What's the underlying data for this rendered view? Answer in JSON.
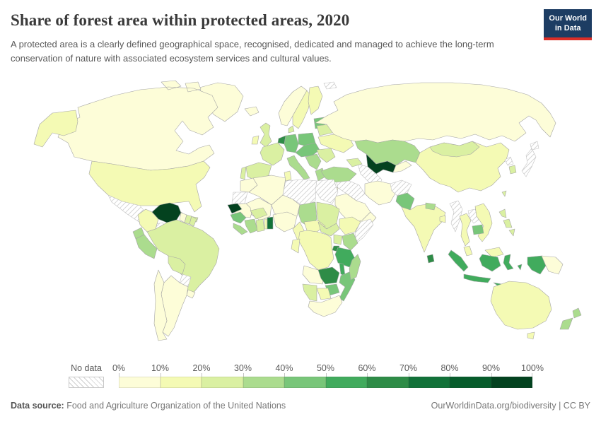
{
  "header": {
    "title": "Share of forest area within protected areas, 2020",
    "subtitle": "A protected area is a clearly defined geographical space, recognised, dedicated and managed to achieve the long-term conservation of nature with associated ecosystem services and cultural values."
  },
  "logo": {
    "line1": "Our World",
    "line2": "in Data",
    "bg_color": "#1d3d63",
    "accent_color": "#dc2e27"
  },
  "legend": {
    "no_data_label": "No data",
    "tick_labels": [
      "0%",
      "10%",
      "20%",
      "30%",
      "40%",
      "50%",
      "60%",
      "70%",
      "80%",
      "90%",
      "100%"
    ],
    "bin_labels": [
      "0-10%",
      "10-20%",
      "20-30%",
      "30-40%",
      "40-50%",
      "50-60%",
      "60-70%",
      "70-80%",
      "80-90%",
      "90-100%"
    ],
    "bin_colors": [
      "#fdfdd8",
      "#f4fab4",
      "#daf0a2",
      "#abdc8e",
      "#78c679",
      "#41ab5d",
      "#2e8c47",
      "#127239",
      "#065c2b",
      "#03421f"
    ]
  },
  "footer": {
    "source_label": "Data source:",
    "source_text": " Food and Agriculture Organization of the United Nations",
    "attribution": "OurWorldinData.org/biodiversity | CC BY"
  },
  "chart_data": {
    "type": "choropleth_map",
    "title": "Share of forest area within protected areas, 2020",
    "unit": "%",
    "bin_edges": [
      0,
      10,
      20,
      30,
      40,
      50,
      60,
      70,
      80,
      90,
      100
    ],
    "legend_position": "bottom",
    "no_data_style": "gray diagonal hatching",
    "regions": [
      {
        "id": "greenland",
        "name": "Greenland",
        "bin": 0
      },
      {
        "id": "canada",
        "name": "Canada",
        "bin": 0
      },
      {
        "id": "usa",
        "name": "United States",
        "bin": 1
      },
      {
        "id": "mexico",
        "name": "Mexico",
        "bin": "no-data"
      },
      {
        "id": "guatemala",
        "name": "Guatemala",
        "bin": 5
      },
      {
        "id": "honduras",
        "name": "Honduras",
        "bin": 2
      },
      {
        "id": "nicaragua",
        "name": "Nicaragua",
        "bin": 2
      },
      {
        "id": "costa_rica",
        "name": "Costa Rica",
        "bin": 4
      },
      {
        "id": "panama",
        "name": "Panama",
        "bin": 4
      },
      {
        "id": "cuba",
        "name": "Cuba",
        "bin": 2
      },
      {
        "id": "hispaniola",
        "name": "Dominican Republic / Haiti",
        "bin": 2
      },
      {
        "id": "venezuela",
        "name": "Venezuela",
        "bin": 9
      },
      {
        "id": "colombia",
        "name": "Colombia",
        "bin": 1
      },
      {
        "id": "guyana",
        "name": "Guyana",
        "bin": 0
      },
      {
        "id": "suriname",
        "name": "Suriname",
        "bin": 2
      },
      {
        "id": "french_guiana",
        "name": "French Guiana",
        "bin": 2
      },
      {
        "id": "ecuador",
        "name": "Ecuador",
        "bin": 3
      },
      {
        "id": "peru",
        "name": "Peru",
        "bin": 3
      },
      {
        "id": "brazil",
        "name": "Brazil",
        "bin": 2
      },
      {
        "id": "bolivia",
        "name": "Bolivia",
        "bin": 2
      },
      {
        "id": "paraguay",
        "name": "Paraguay",
        "bin": "no-data"
      },
      {
        "id": "uruguay",
        "name": "Uruguay",
        "bin": 0
      },
      {
        "id": "argentina",
        "name": "Argentina",
        "bin": 0
      },
      {
        "id": "chile",
        "name": "Chile",
        "bin": 0
      },
      {
        "id": "iceland",
        "name": "Iceland",
        "bin": 0
      },
      {
        "id": "uk",
        "name": "United Kingdom",
        "bin": 2
      },
      {
        "id": "ireland",
        "name": "Ireland",
        "bin": 1
      },
      {
        "id": "norway",
        "name": "Norway",
        "bin": 0
      },
      {
        "id": "sweden",
        "name": "Sweden",
        "bin": 1
      },
      {
        "id": "finland",
        "name": "Finland",
        "bin": 1
      },
      {
        "id": "denmark",
        "name": "Denmark",
        "bin": 2
      },
      {
        "id": "baltics",
        "name": "Baltic states",
        "bin": 4
      },
      {
        "id": "benelux",
        "name": "Netherlands / Belgium",
        "bin": 6
      },
      {
        "id": "germany",
        "name": "Germany",
        "bin": 4
      },
      {
        "id": "france",
        "name": "France",
        "bin": 2
      },
      {
        "id": "spain",
        "name": "Spain",
        "bin": 2
      },
      {
        "id": "portugal",
        "name": "Portugal",
        "bin": 2
      },
      {
        "id": "italy",
        "name": "Italy",
        "bin": 3
      },
      {
        "id": "poland",
        "name": "Poland",
        "bin": 4
      },
      {
        "id": "central_europe",
        "name": "Central Europe",
        "bin": 4
      },
      {
        "id": "balkans",
        "name": "Balkans",
        "bin": 3
      },
      {
        "id": "greece",
        "name": "Greece",
        "bin": 3
      },
      {
        "id": "romania_bulgaria",
        "name": "Romania / Bulgaria",
        "bin": 2
      },
      {
        "id": "ukraine",
        "name": "Ukraine",
        "bin": 1
      },
      {
        "id": "belarus",
        "name": "Belarus",
        "bin": 2
      },
      {
        "id": "russia",
        "name": "Russia",
        "bin": 0
      },
      {
        "id": "svalbard",
        "name": "Svalbard",
        "bin": "no-data"
      },
      {
        "id": "kazakhstan",
        "name": "Kazakhstan",
        "bin": 3
      },
      {
        "id": "uzbekistan",
        "name": "Uzbekistan",
        "bin": 9
      },
      {
        "id": "turkmenistan",
        "name": "Turkmenistan",
        "bin": "no-data"
      },
      {
        "id": "kyrgyz_tajik",
        "name": "Kyrgyzstan / Tajikistan",
        "bin": 0
      },
      {
        "id": "caucasus",
        "name": "Caucasus",
        "bin": 2
      },
      {
        "id": "turkey",
        "name": "Turkey",
        "bin": 3
      },
      {
        "id": "syria_iraq",
        "name": "Syria / Iraq",
        "bin": "no-data"
      },
      {
        "id": "israel_jordan",
        "name": "Israel / Jordan",
        "bin": 0
      },
      {
        "id": "saudi",
        "name": "Saudi Arabia",
        "bin": 0
      },
      {
        "id": "yemen_oman",
        "name": "Yemen / Oman",
        "bin": 0
      },
      {
        "id": "iran",
        "name": "Iran",
        "bin": 0
      },
      {
        "id": "afghanistan",
        "name": "Afghanistan",
        "bin": "no-data"
      },
      {
        "id": "pakistan",
        "name": "Pakistan",
        "bin": 4
      },
      {
        "id": "india",
        "name": "India",
        "bin": 1
      },
      {
        "id": "nepal",
        "name": "Nepal",
        "bin": 3
      },
      {
        "id": "bangladesh",
        "name": "Bangladesh",
        "bin": 1
      },
      {
        "id": "sri_lanka",
        "name": "Sri Lanka",
        "bin": 6
      },
      {
        "id": "china",
        "name": "China",
        "bin": 1
      },
      {
        "id": "mongolia",
        "name": "Mongolia",
        "bin": 2
      },
      {
        "id": "korea_n",
        "name": "North Korea",
        "bin": "no-data"
      },
      {
        "id": "korea_s",
        "name": "South Korea",
        "bin": 2
      },
      {
        "id": "japan",
        "name": "Japan",
        "bin": "no-data"
      },
      {
        "id": "taiwan",
        "name": "Taiwan",
        "bin": 2
      },
      {
        "id": "myanmar",
        "name": "Myanmar",
        "bin": "no-data"
      },
      {
        "id": "thailand",
        "name": "Thailand",
        "bin": 1
      },
      {
        "id": "laos",
        "name": "Laos",
        "bin": "no-data"
      },
      {
        "id": "vietnam",
        "name": "Vietnam",
        "bin": 1
      },
      {
        "id": "cambodia",
        "name": "Cambodia",
        "bin": 4
      },
      {
        "id": "malaysia",
        "name": "Malaysia",
        "bin": 1
      },
      {
        "id": "philippines",
        "name": "Philippines",
        "bin": 2
      },
      {
        "id": "indonesia",
        "name": "Indonesia",
        "bin": 5
      },
      {
        "id": "png",
        "name": "Papua New Guinea",
        "bin": 0
      },
      {
        "id": "australia",
        "name": "Australia",
        "bin": 1
      },
      {
        "id": "nz",
        "name": "New Zealand",
        "bin": 3
      },
      {
        "id": "morocco",
        "name": "Morocco",
        "bin": 0
      },
      {
        "id": "w_sahara",
        "name": "Western Sahara",
        "bin": "no-data"
      },
      {
        "id": "algeria",
        "name": "Algeria",
        "bin": 0
      },
      {
        "id": "tunisia",
        "name": "Tunisia",
        "bin": 1
      },
      {
        "id": "libya",
        "name": "Libya",
        "bin": "no-data"
      },
      {
        "id": "egypt",
        "name": "Egypt",
        "bin": "no-data"
      },
      {
        "id": "mauritania",
        "name": "Mauritania",
        "bin": 0
      },
      {
        "id": "mali",
        "name": "Mali",
        "bin": 0
      },
      {
        "id": "niger",
        "name": "Niger",
        "bin": 0
      },
      {
        "id": "chad",
        "name": "Chad",
        "bin": 3
      },
      {
        "id": "sudan",
        "name": "Sudan",
        "bin": 2
      },
      {
        "id": "senegal_gambia",
        "name": "Senegal / Gambia",
        "bin": 9
      },
      {
        "id": "guinea",
        "name": "Guinea",
        "bin": 4
      },
      {
        "id": "sierra_liberia",
        "name": "Sierra Leone / Liberia",
        "bin": 3
      },
      {
        "id": "cote_divoire",
        "name": "Cote d'Ivoire",
        "bin": 3
      },
      {
        "id": "ghana",
        "name": "Ghana",
        "bin": 2
      },
      {
        "id": "togo",
        "name": "Togo",
        "bin": 1
      },
      {
        "id": "benin",
        "name": "Benin",
        "bin": 7
      },
      {
        "id": "burkina",
        "name": "Burkina Faso",
        "bin": 2
      },
      {
        "id": "nigeria",
        "name": "Nigeria",
        "bin": 0
      },
      {
        "id": "cameroon",
        "name": "Cameroon",
        "bin": 1
      },
      {
        "id": "car",
        "name": "Central African Republic",
        "bin": 1
      },
      {
        "id": "south_sudan",
        "name": "South Sudan",
        "bin": 2
      },
      {
        "id": "ethiopia",
        "name": "Ethiopia",
        "bin": 1
      },
      {
        "id": "somalia",
        "name": "Somalia",
        "bin": "no-data"
      },
      {
        "id": "kenya",
        "name": "Kenya",
        "bin": 3
      },
      {
        "id": "uganda",
        "name": "Uganda",
        "bin": 2
      },
      {
        "id": "rwanda_burundi",
        "name": "Rwanda / Burundi",
        "bin": 6
      },
      {
        "id": "tanzania",
        "name": "Tanzania",
        "bin": 5
      },
      {
        "id": "drc",
        "name": "Democratic Republic of Congo",
        "bin": 1
      },
      {
        "id": "congo_gabon",
        "name": "Congo / Gabon",
        "bin": 1
      },
      {
        "id": "angola",
        "name": "Angola",
        "bin": 0
      },
      {
        "id": "zambia",
        "name": "Zambia",
        "bin": 6
      },
      {
        "id": "malawi",
        "name": "Malawi",
        "bin": 5
      },
      {
        "id": "mozambique",
        "name": "Mozambique",
        "bin": 4
      },
      {
        "id": "zimbabwe",
        "name": "Zimbabwe",
        "bin": 4
      },
      {
        "id": "botswana",
        "name": "Botswana",
        "bin": 1
      },
      {
        "id": "namibia",
        "name": "Namibia",
        "bin": 2
      },
      {
        "id": "south_africa",
        "name": "South Africa",
        "bin": 0
      },
      {
        "id": "madagascar",
        "name": "Madagascar",
        "bin": 3
      }
    ]
  }
}
